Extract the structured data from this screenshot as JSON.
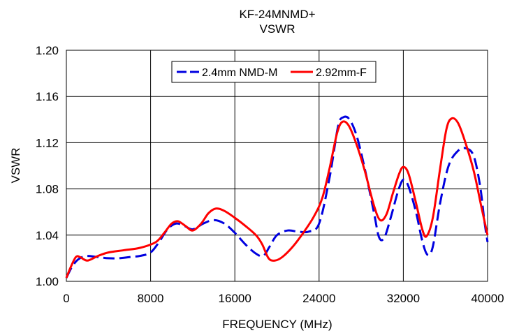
{
  "chart_data": {
    "type": "line",
    "title": "KF-24MNMD+",
    "subtitle": "VSWR",
    "xlabel": "FREQUENCY (MHz)",
    "ylabel": "VSWR",
    "xlim": [
      0,
      40000
    ],
    "ylim": [
      1.0,
      1.2
    ],
    "xticks": [
      "0",
      "8000",
      "16000",
      "24000",
      "32000",
      "40000"
    ],
    "yticks": [
      "1.00",
      "1.04",
      "1.08",
      "1.12",
      "1.16",
      "1.20"
    ],
    "grid": true,
    "legend_position": "top-center",
    "series": [
      {
        "name": "2.4mm NMD-M",
        "color": "#0000e0",
        "style": "dashed",
        "points": [
          [
            0,
            1.003
          ],
          [
            500,
            1.012
          ],
          [
            1000,
            1.018
          ],
          [
            1500,
            1.021
          ],
          [
            2000,
            1.022
          ],
          [
            3000,
            1.021
          ],
          [
            4000,
            1.02
          ],
          [
            5000,
            1.02
          ],
          [
            6000,
            1.021
          ],
          [
            7000,
            1.022
          ],
          [
            8000,
            1.025
          ],
          [
            8800,
            1.034
          ],
          [
            9600,
            1.045
          ],
          [
            10400,
            1.05
          ],
          [
            11200,
            1.048
          ],
          [
            12000,
            1.045
          ],
          [
            13000,
            1.05
          ],
          [
            14000,
            1.053
          ],
          [
            15000,
            1.05
          ],
          [
            16000,
            1.042
          ],
          [
            17000,
            1.032
          ],
          [
            18000,
            1.024
          ],
          [
            18700,
            1.022
          ],
          [
            19300,
            1.03
          ],
          [
            20000,
            1.04
          ],
          [
            21000,
            1.044
          ],
          [
            22000,
            1.043
          ],
          [
            23000,
            1.043
          ],
          [
            24000,
            1.05
          ],
          [
            25000,
            1.09
          ],
          [
            25800,
            1.134
          ],
          [
            26300,
            1.142
          ],
          [
            26900,
            1.14
          ],
          [
            27600,
            1.125
          ],
          [
            28400,
            1.095
          ],
          [
            29200,
            1.06
          ],
          [
            29700,
            1.038
          ],
          [
            30200,
            1.038
          ],
          [
            30800,
            1.055
          ],
          [
            31500,
            1.078
          ],
          [
            32000,
            1.088
          ],
          [
            32500,
            1.082
          ],
          [
            33200,
            1.06
          ],
          [
            33800,
            1.035
          ],
          [
            34300,
            1.023
          ],
          [
            34800,
            1.03
          ],
          [
            35500,
            1.068
          ],
          [
            36300,
            1.1
          ],
          [
            37200,
            1.113
          ],
          [
            38000,
            1.115
          ],
          [
            38700,
            1.108
          ],
          [
            39300,
            1.082
          ],
          [
            39700,
            1.052
          ],
          [
            40000,
            1.034
          ]
        ]
      },
      {
        "name": "2.92mm-F",
        "color": "#ff0000",
        "style": "solid",
        "points": [
          [
            0,
            1.003
          ],
          [
            400,
            1.012
          ],
          [
            900,
            1.021
          ],
          [
            1300,
            1.021
          ],
          [
            2000,
            1.018
          ],
          [
            3000,
            1.022
          ],
          [
            4000,
            1.025
          ],
          [
            5500,
            1.027
          ],
          [
            7000,
            1.029
          ],
          [
            8500,
            1.034
          ],
          [
            9300,
            1.042
          ],
          [
            10000,
            1.05
          ],
          [
            10600,
            1.052
          ],
          [
            11300,
            1.048
          ],
          [
            12000,
            1.044
          ],
          [
            12800,
            1.05
          ],
          [
            13500,
            1.059
          ],
          [
            14200,
            1.063
          ],
          [
            15000,
            1.061
          ],
          [
            16000,
            1.055
          ],
          [
            17000,
            1.048
          ],
          [
            18000,
            1.04
          ],
          [
            18600,
            1.032
          ],
          [
            19200,
            1.02
          ],
          [
            19800,
            1.018
          ],
          [
            20500,
            1.021
          ],
          [
            21500,
            1.03
          ],
          [
            22500,
            1.042
          ],
          [
            23500,
            1.056
          ],
          [
            24300,
            1.072
          ],
          [
            25000,
            1.098
          ],
          [
            25700,
            1.128
          ],
          [
            26200,
            1.138
          ],
          [
            26800,
            1.135
          ],
          [
            27500,
            1.12
          ],
          [
            28300,
            1.097
          ],
          [
            29200,
            1.066
          ],
          [
            29800,
            1.053
          ],
          [
            30400,
            1.058
          ],
          [
            31000,
            1.076
          ],
          [
            31600,
            1.093
          ],
          [
            32000,
            1.099
          ],
          [
            32500,
            1.093
          ],
          [
            33200,
            1.068
          ],
          [
            33800,
            1.045
          ],
          [
            34200,
            1.039
          ],
          [
            34800,
            1.055
          ],
          [
            35500,
            1.098
          ],
          [
            36100,
            1.132
          ],
          [
            36600,
            1.141
          ],
          [
            37200,
            1.137
          ],
          [
            37900,
            1.12
          ],
          [
            38700,
            1.095
          ],
          [
            39400,
            1.065
          ],
          [
            40000,
            1.04
          ]
        ]
      }
    ]
  }
}
